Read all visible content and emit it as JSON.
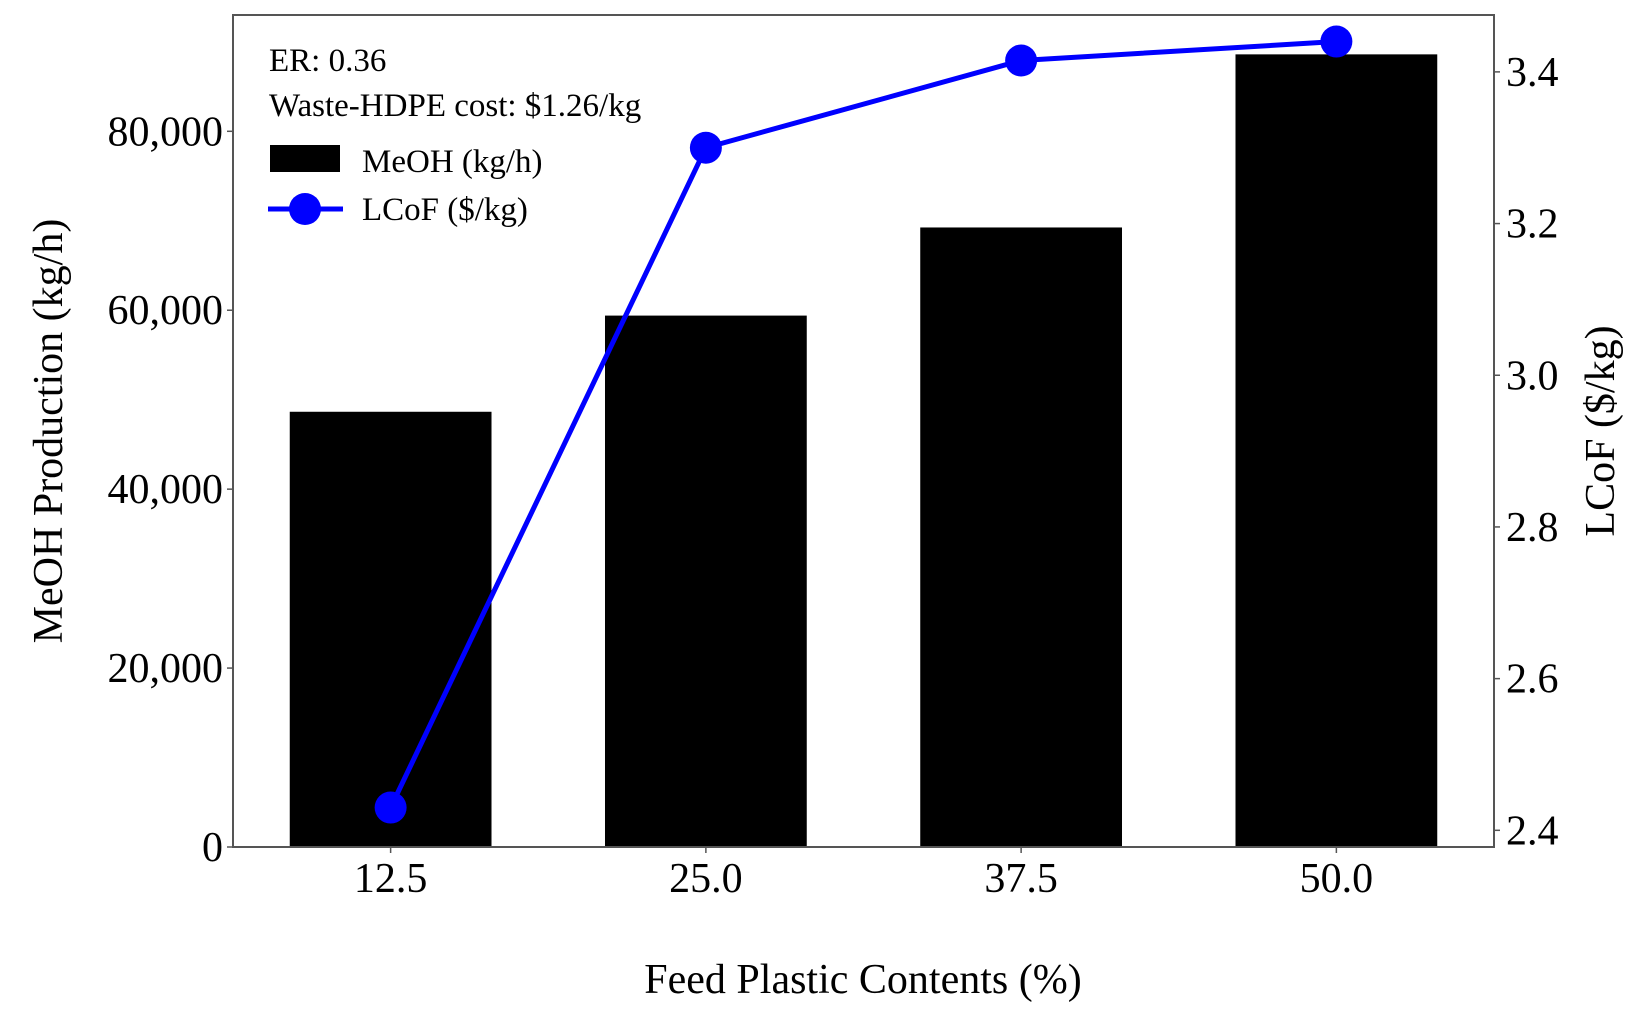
{
  "chart_data": {
    "type": "bar",
    "combo": "bar + line (dual y-axis)",
    "title": "",
    "annotations": [
      "ER: 0.36",
      "Waste-HDPE cost: $1.26/kg"
    ],
    "xlabel": "Feed Plastic Contents (%)",
    "categories": [
      "12.5",
      "25.0",
      "37.5",
      "50.0"
    ],
    "y_left": {
      "label": "MeOH Production (kg/h)",
      "ylim": [
        0,
        93000
      ],
      "ticks": [
        0,
        20000,
        40000,
        60000,
        80000
      ],
      "tick_labels": [
        "0",
        "20,000",
        "40,000",
        "60,000",
        "80,000"
      ]
    },
    "y_right": {
      "label": "LCoF ($/kg)",
      "ylim": [
        2.378,
        3.475
      ],
      "ticks": [
        2.4,
        2.6,
        2.8,
        3.0,
        3.2,
        3.4
      ],
      "tick_labels": [
        "2.4",
        "2.6",
        "2.8",
        "3.0",
        "3.2",
        "3.4"
      ]
    },
    "series": [
      {
        "name": "MeOH (kg/h)",
        "kind": "bar",
        "axis": "left",
        "color": "#000000",
        "values": [
          48650,
          59400,
          69250,
          88600
        ]
      },
      {
        "name": "LCoF ($/kg)",
        "kind": "line",
        "axis": "right",
        "color": "#0000ff",
        "marker": "circle",
        "values": [
          2.43,
          3.3,
          3.415,
          3.44
        ]
      }
    ],
    "legend": {
      "placement": "top-left",
      "entries": [
        "MeOH (kg/h)",
        "LCoF ($/kg)"
      ]
    },
    "grid": false
  }
}
